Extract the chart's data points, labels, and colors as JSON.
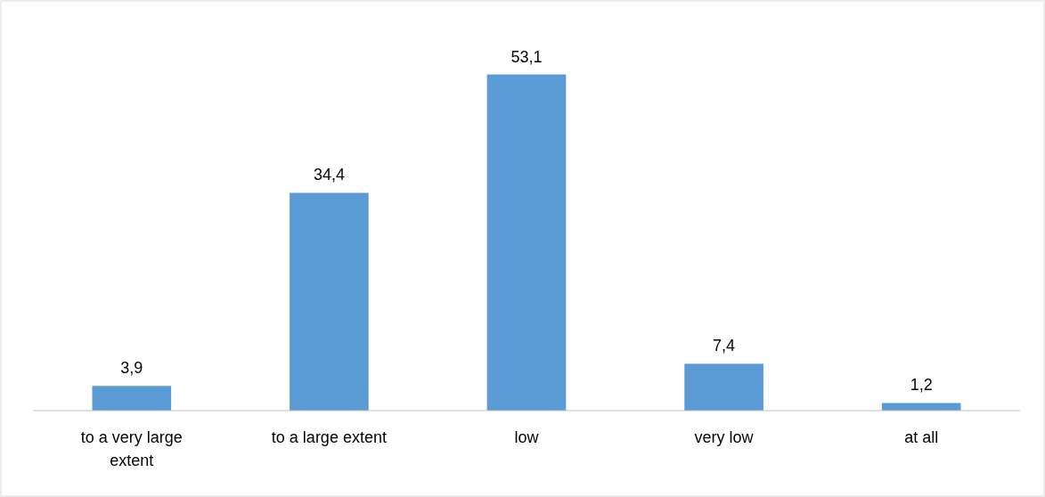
{
  "chart_data": {
    "type": "bar",
    "categories": [
      "to a very large extent",
      "to a large extent",
      "low",
      "very low",
      "at all"
    ],
    "values": [
      3.9,
      34.4,
      53.1,
      7.4,
      1.2
    ],
    "color": "#5b9bd5",
    "value_labels": [
      "3,9",
      "34,4",
      "53,1",
      "7,4",
      "1,2"
    ]
  }
}
